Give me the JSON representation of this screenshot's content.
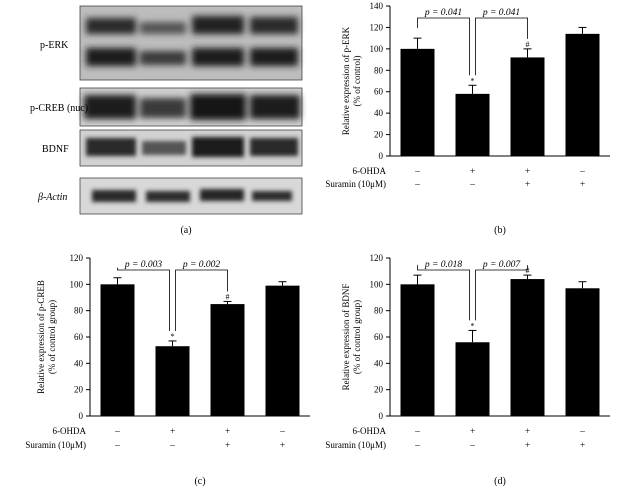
{
  "blot": {
    "panel_label": "(a)",
    "rows": [
      {
        "label": "p-ERK"
      },
      {
        "label": "p-CREB (nuc)"
      },
      {
        "label": "BDNF"
      },
      {
        "label": "β-Actin"
      }
    ]
  },
  "condition_labels": {
    "row1": "6-OHDA",
    "row2": "Suramin (10μM)"
  },
  "condition_signs": {
    "6-OHDA": [
      "–",
      "+",
      "+",
      "–"
    ],
    "Suramin": [
      "–",
      "–",
      "+",
      "+"
    ]
  },
  "chart_data": [
    {
      "type": "bar",
      "panel": "(b)",
      "ylabel": "Relative expression of p-ERK (% of control)",
      "ylabel_lines": [
        "Relative expression of p-ERK",
        "(% of control)"
      ],
      "ylim": [
        0,
        140
      ],
      "yticks": [
        0,
        20,
        40,
        60,
        80,
        100,
        120,
        140
      ],
      "values": [
        100,
        58,
        92,
        114
      ],
      "errors": [
        10,
        8,
        8,
        6
      ],
      "marks": [
        "",
        "*",
        "#",
        ""
      ],
      "comparisons": [
        {
          "from": 0,
          "to": 1,
          "label": "p = 0.041"
        },
        {
          "from": 1,
          "to": 2,
          "label": "p = 0.041"
        }
      ]
    },
    {
      "type": "bar",
      "panel": "(c)",
      "ylabel": "Relative expression of p-CREB (% of control group)",
      "ylabel_lines": [
        "Relative expression of p-CREB",
        "(% of control group)"
      ],
      "ylim": [
        0,
        120
      ],
      "yticks": [
        0,
        20,
        40,
        60,
        80,
        100,
        120
      ],
      "values": [
        100,
        53,
        85,
        99
      ],
      "errors": [
        5,
        4,
        2,
        3
      ],
      "marks": [
        "",
        "*",
        "#",
        ""
      ],
      "comparisons": [
        {
          "from": 0,
          "to": 1,
          "label": "p = 0.003"
        },
        {
          "from": 1,
          "to": 2,
          "label": "p = 0.002"
        }
      ]
    },
    {
      "type": "bar",
      "panel": "(d)",
      "ylabel": "Relative expression of BDNF (% of control group)",
      "ylabel_lines": [
        "Relative expression of BDNF",
        "(% of control group)"
      ],
      "ylim": [
        0,
        120
      ],
      "yticks": [
        0,
        20,
        40,
        60,
        80,
        100,
        120
      ],
      "values": [
        100,
        56,
        104,
        97
      ],
      "errors": [
        7,
        9,
        3,
        5
      ],
      "marks": [
        "",
        "*",
        "#",
        ""
      ],
      "comparisons": [
        {
          "from": 0,
          "to": 1,
          "label": "p = 0.018"
        },
        {
          "from": 1,
          "to": 2,
          "label": "p = 0.007"
        }
      ]
    }
  ]
}
